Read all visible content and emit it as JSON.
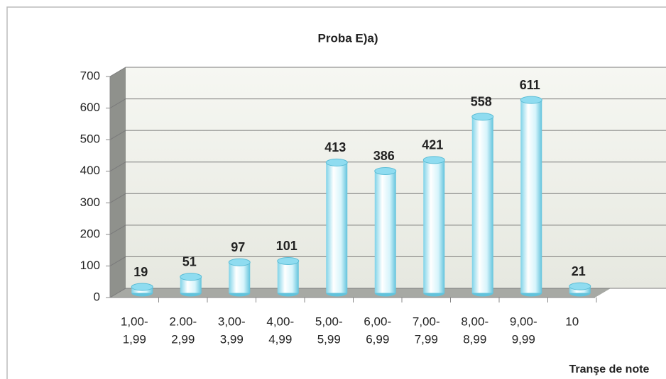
{
  "chart_data": {
    "type": "bar",
    "title": "Proba E)a)",
    "x_label": "Tranşe de note",
    "categories": [
      [
        "1,00-",
        "1,99"
      ],
      [
        "2.00-",
        "2,99"
      ],
      [
        "3,00-",
        "3,99"
      ],
      [
        "4,00-",
        "4,99"
      ],
      [
        "5,00-",
        "5,99"
      ],
      [
        "6,00-",
        "6,99"
      ],
      [
        "7,00-",
        "7,99"
      ],
      [
        "8,00-",
        "8,99"
      ],
      [
        "9,00-",
        "9,99"
      ],
      [
        "10"
      ]
    ],
    "values": [
      19,
      51,
      97,
      101,
      413,
      386,
      421,
      558,
      611,
      21
    ],
    "color": "#8fdcf0",
    "ylim": [
      0,
      700
    ],
    "yticks": [
      0,
      100,
      200,
      300,
      400,
      500,
      600,
      700
    ],
    "grid": true
  }
}
